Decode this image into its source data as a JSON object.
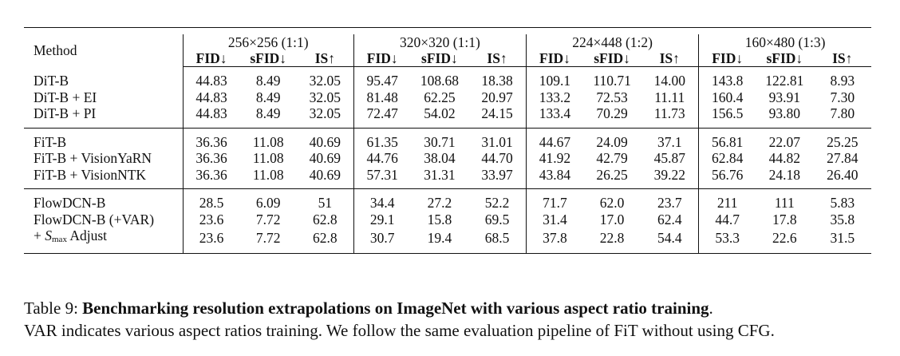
{
  "table": {
    "method_header": "Method",
    "groups": [
      "256×256 (1:1)",
      "320×320 (1:1)",
      "224×448 (1:2)",
      "160×480 (1:3)"
    ],
    "metrics": [
      "FID↓",
      "sFID↓",
      "IS↑"
    ],
    "sections": [
      {
        "rows": [
          {
            "method": "DiT-B",
            "values": [
              "44.83",
              "8.49",
              "32.05",
              "95.47",
              "108.68",
              "18.38",
              "109.1",
              "110.71",
              "14.00",
              "143.8",
              "122.81",
              "8.93"
            ]
          },
          {
            "method": "DiT-B + EI",
            "values": [
              "44.83",
              "8.49",
              "32.05",
              "81.48",
              "62.25",
              "20.97",
              "133.2",
              "72.53",
              "11.11",
              "160.4",
              "93.91",
              "7.30"
            ]
          },
          {
            "method": "DiT-B + PI",
            "values": [
              "44.83",
              "8.49",
              "32.05",
              "72.47",
              "54.02",
              "24.15",
              "133.4",
              "70.29",
              "11.73",
              "156.5",
              "93.80",
              "7.80"
            ]
          }
        ]
      },
      {
        "rows": [
          {
            "method": "FiT-B",
            "values": [
              "36.36",
              "11.08",
              "40.69",
              "61.35",
              "30.71",
              "31.01",
              "44.67",
              "24.09",
              "37.1",
              "56.81",
              "22.07",
              "25.25"
            ]
          },
          {
            "method": "FiT-B + VisionYaRN",
            "values": [
              "36.36",
              "11.08",
              "40.69",
              "44.76",
              "38.04",
              "44.70",
              "41.92",
              "42.79",
              "45.87",
              "62.84",
              "44.82",
              "27.84"
            ]
          },
          {
            "method": "FiT-B + VisionNTK",
            "values": [
              "36.36",
              "11.08",
              "40.69",
              "57.31",
              "31.31",
              "33.97",
              "43.84",
              "26.25",
              "39.22",
              "56.76",
              "24.18",
              "26.40"
            ]
          }
        ]
      },
      {
        "rows": [
          {
            "method": "FlowDCN-B",
            "values": [
              "28.5",
              "6.09",
              "51",
              "34.4",
              "27.2",
              "52.2",
              "71.7",
              "62.0",
              "23.7",
              "211",
              "111",
              "5.83"
            ]
          },
          {
            "method": "FlowDCN-B (+VAR)",
            "values": [
              "23.6",
              "7.72",
              "62.8",
              "29.1",
              "15.8",
              "69.5",
              "31.4",
              "17.0",
              "62.4",
              "44.7",
              "17.8",
              "35.8"
            ]
          },
          {
            "method_parts": {
              "prefix": "+ ",
              "symbol": "S",
              "subscript": "max",
              "suffix": " Adjust"
            },
            "values": [
              "23.6",
              "7.72",
              "62.8",
              "30.7",
              "19.4",
              "68.5",
              "37.8",
              "22.8",
              "54.4",
              "53.3",
              "22.6",
              "31.5"
            ]
          }
        ]
      }
    ]
  },
  "caption": {
    "label": "Table 9: ",
    "title": "Benchmarking resolution extrapolations on ImageNet with various aspect ratio training",
    "title_end": ".",
    "body": "VAR indicates various aspect ratios training. We follow the same evaluation pipeline of FiT without using CFG."
  }
}
